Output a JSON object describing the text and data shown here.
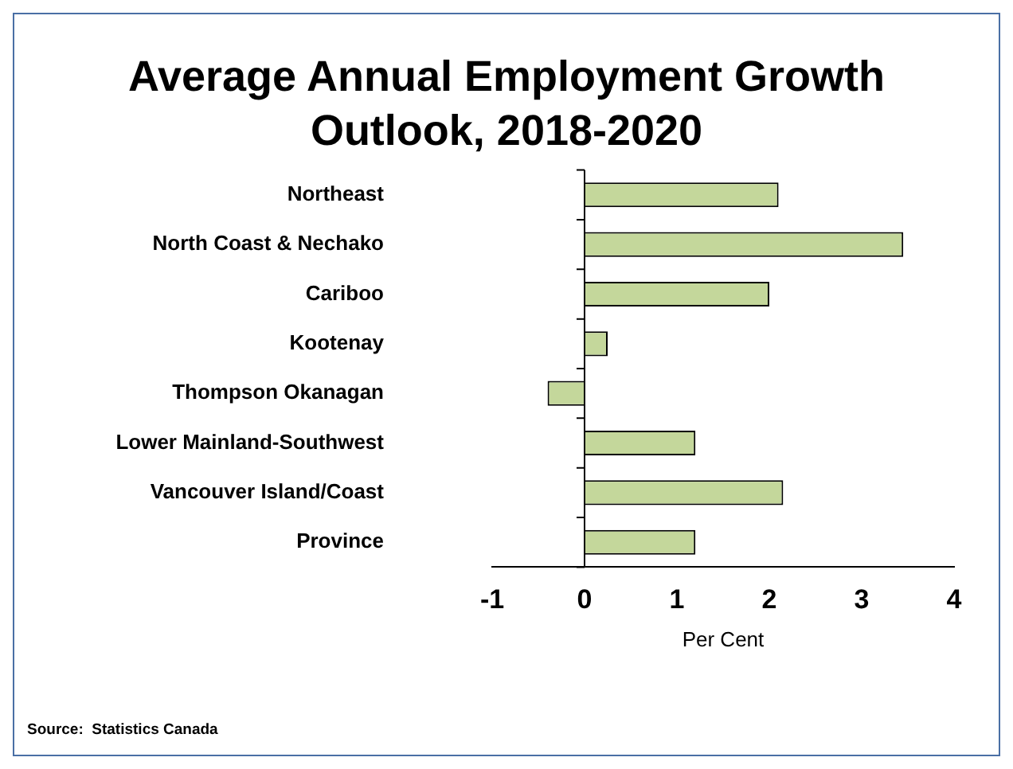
{
  "chart_data": {
    "type": "bar",
    "orientation": "horizontal",
    "title": "Average Annual Employment Growth Outlook, 2018-2020",
    "categories": [
      "Northeast",
      "North Coast & Nechako",
      "Cariboo",
      "Kootenay",
      "Thompson Okanagan",
      "Lower Mainland-Southwest",
      "Vancouver Island/Coast",
      "Province"
    ],
    "values": [
      2.1,
      3.45,
      2.0,
      0.25,
      -0.4,
      1.2,
      2.15,
      1.2
    ],
    "color": "#c4d79b",
    "xlim": [
      -1,
      4
    ],
    "xticks": [
      -1,
      0,
      1,
      2,
      3,
      4
    ],
    "xlabel": "Per Cent",
    "grid": false,
    "legend": false,
    "ref_lines": [
      {
        "axis": "x",
        "value": 0,
        "color": "#000000"
      }
    ],
    "annotations": [
      "Source:  Statistics Canada"
    ]
  }
}
